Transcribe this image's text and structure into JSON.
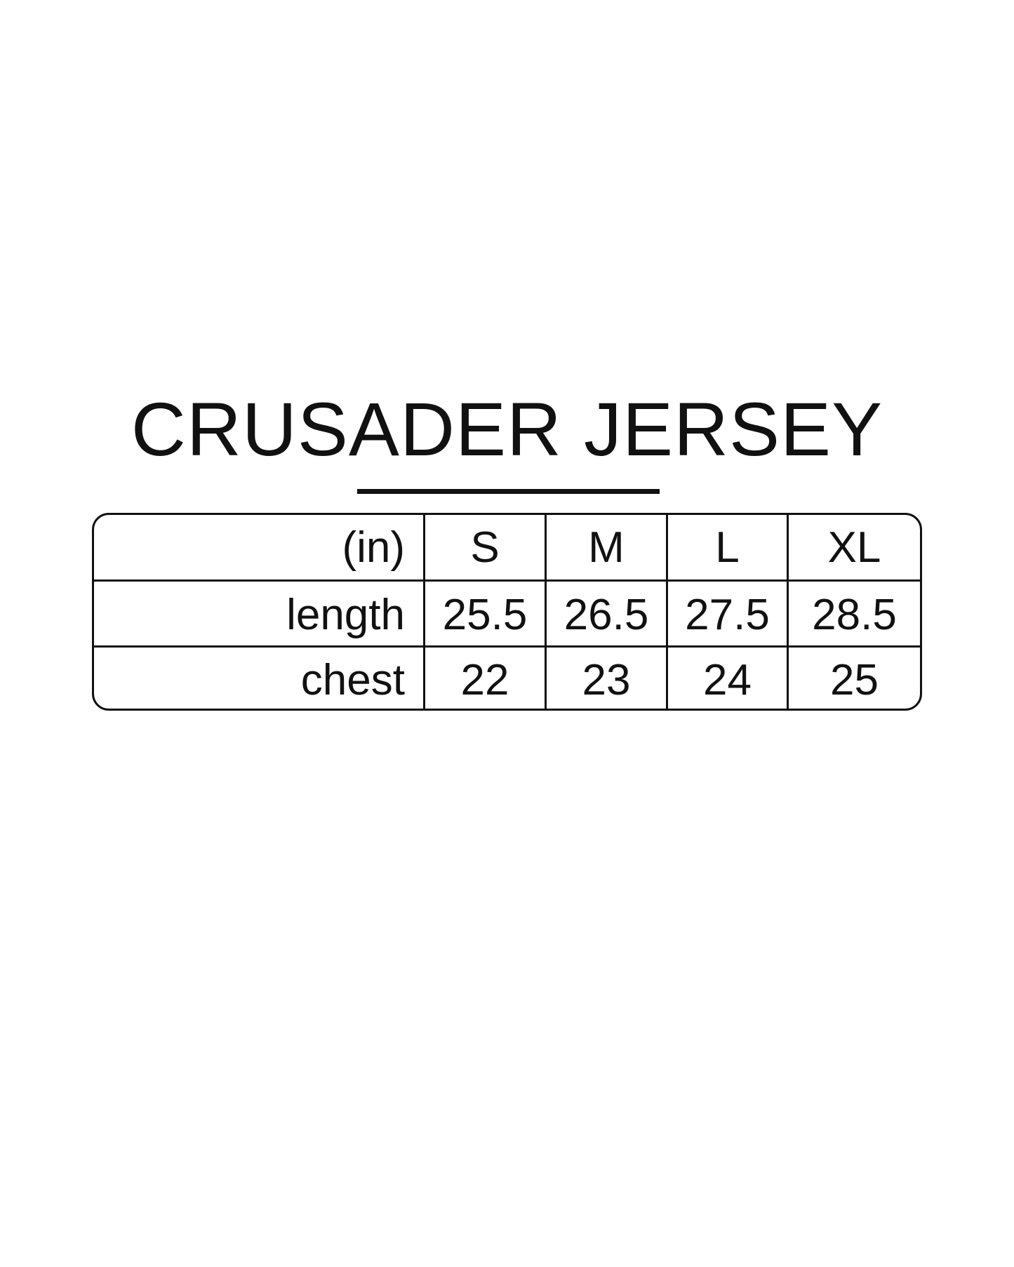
{
  "title": "CRUSADER JERSEY",
  "table": {
    "unit_label": "(in)",
    "sizes": [
      "S",
      "M",
      "L",
      "XL"
    ],
    "rows": [
      {
        "label": "length",
        "values": [
          "25.5",
          "26.5",
          "27.5",
          "28.5"
        ]
      },
      {
        "label": "chest",
        "values": [
          "22",
          "23",
          "24",
          "25"
        ]
      }
    ]
  }
}
